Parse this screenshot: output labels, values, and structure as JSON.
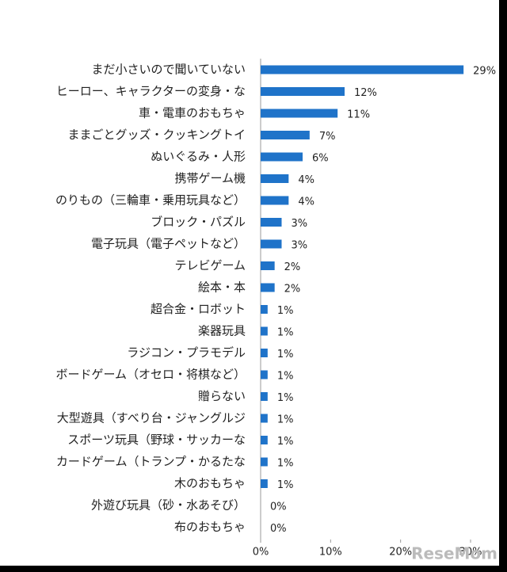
{
  "chart_data": {
    "type": "bar",
    "orientation": "horizontal",
    "color": "#1f73c9",
    "categories": [
      "まだ小さいので聞いていない",
      "ヒーロー、キャラクターの変身・な",
      "車・電車のおもちゃ",
      "ままごとグッズ・クッキングトイ",
      "ぬいぐるみ・人形",
      "携帯ゲーム機",
      "のりもの（三輪車・乗用玩具など）",
      "ブロック・パズル",
      "電子玩具（電子ペットなど）",
      "テレビゲーム",
      "絵本・本",
      "超合金・ロボット",
      "楽器玩具",
      "ラジコン・プラモデル",
      "ボードゲーム（オセロ・将棋など）",
      "贈らない",
      "大型遊具（すべり台・ジャングルジ",
      "スポーツ玩具（野球・サッカーな",
      "カードゲーム（トランプ・かるたな",
      "木のおもちゃ",
      "外遊び玩具（砂・水あそび）",
      "布のおもちゃ"
    ],
    "values": [
      29,
      12,
      11,
      7,
      6,
      4,
      4,
      3,
      3,
      2,
      2,
      1,
      1,
      1,
      1,
      1,
      1,
      1,
      1,
      1,
      0,
      0
    ],
    "value_labels": [
      "29%",
      "12%",
      "11%",
      "7%",
      "6%",
      "4%",
      "4%",
      "3%",
      "3%",
      "2%",
      "2%",
      "1%",
      "1%",
      "1%",
      "1%",
      "1%",
      "1%",
      "1%",
      "1%",
      "1%",
      "0%",
      "0%"
    ],
    "xlim": [
      0,
      30
    ],
    "xticks": [
      {
        "value": 0,
        "label": "0%"
      },
      {
        "value": 10,
        "label": "10%"
      },
      {
        "value": 20,
        "label": "20%"
      },
      {
        "value": 30,
        "label": "30%"
      }
    ],
    "watermark": "ReseMom"
  }
}
